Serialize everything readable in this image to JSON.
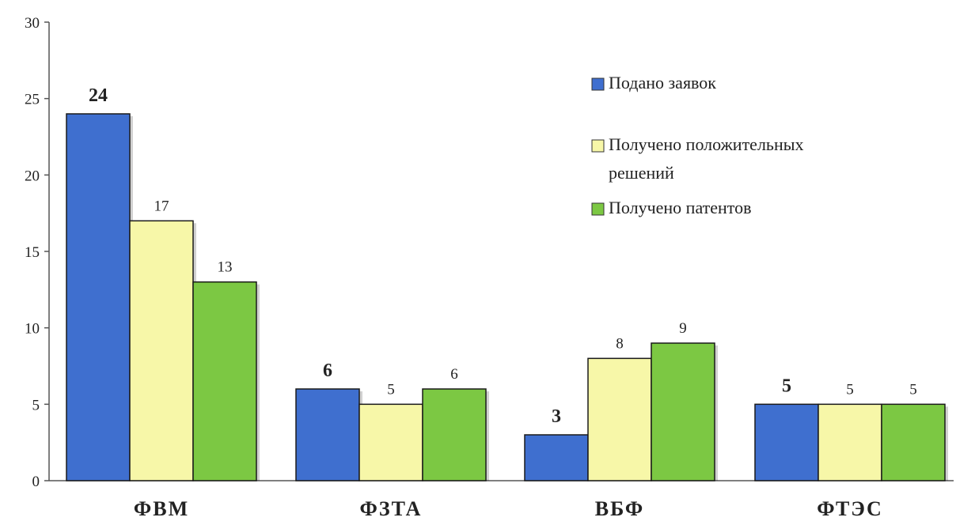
{
  "chart_data": {
    "type": "bar",
    "categories": [
      "ФВМ",
      "ФЗТА",
      "ВБФ",
      "ФТЭС"
    ],
    "series": [
      {
        "name": "Подано заявок",
        "values": [
          24,
          6,
          3,
          5
        ],
        "color": "#3f6fcf"
      },
      {
        "name": "Получено положительных решений",
        "values": [
          17,
          5,
          8,
          5
        ],
        "color": "#f7f7a8"
      },
      {
        "name": "Получено патентов",
        "values": [
          13,
          6,
          9,
          5
        ],
        "color": "#7cc843"
      }
    ],
    "ylim": [
      0,
      30
    ],
    "yticks": [
      0,
      5,
      10,
      15,
      20,
      25,
      30
    ],
    "legend_position": "top-right",
    "grid": false,
    "title": "",
    "xlabel": "",
    "ylabel": ""
  }
}
